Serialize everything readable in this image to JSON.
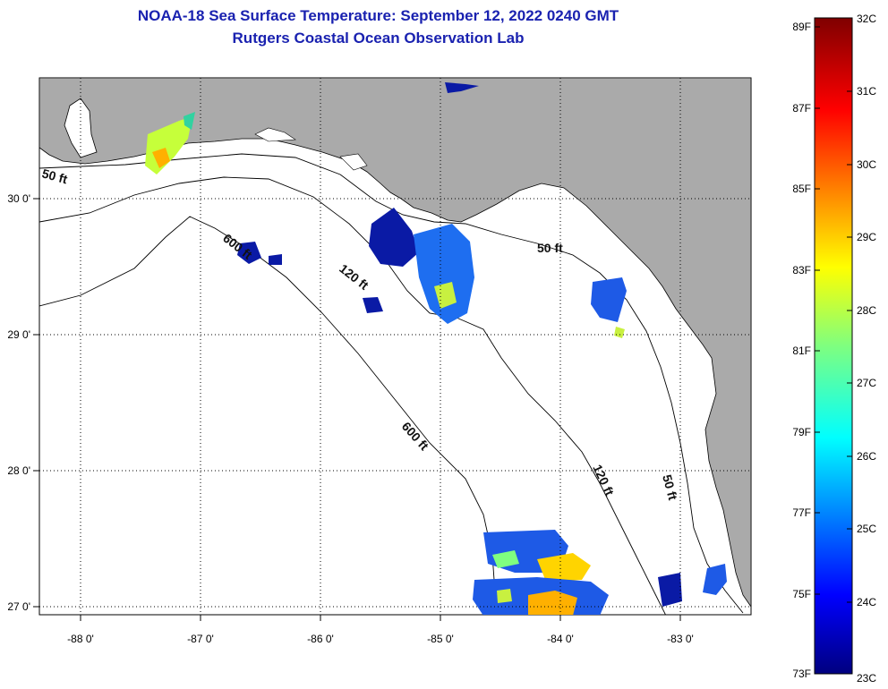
{
  "title": {
    "line1": "NOAA-18 Sea Surface Temperature:  September 12, 2022 0240 GMT",
    "line2": "Rutgers Coastal Ocean Observation Lab"
  },
  "axes": {
    "longitude_labels": [
      "-88 0'",
      "-87 0'",
      "-86 0'",
      "-85 0'",
      "-84 0'",
      "-83 0'"
    ],
    "latitude_labels": [
      "30 0'",
      "29 0'",
      "28 0'",
      "27 0'"
    ]
  },
  "contours": {
    "label_50ft": "50 ft",
    "label_120ft": "120 ft",
    "label_600ft": "600 ft"
  },
  "colorbar": {
    "fahrenheit": [
      "89F",
      "87F",
      "85F",
      "83F",
      "81F",
      "79F",
      "77F",
      "75F",
      "73F"
    ],
    "celsius": [
      "32C",
      "31C",
      "30C",
      "29C",
      "28C",
      "27C",
      "26C",
      "25C",
      "24C",
      "23C"
    ]
  },
  "colors": {
    "land": "#aaaaaa",
    "title": "#1a22b0"
  }
}
